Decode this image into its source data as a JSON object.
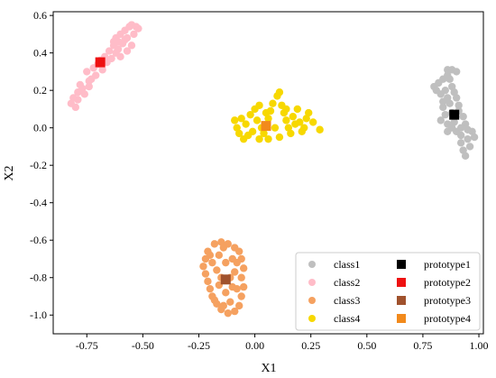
{
  "chart_data": {
    "type": "scatter",
    "xlabel": "X1",
    "ylabel": "X2",
    "xlim": [
      -0.9,
      1.02
    ],
    "ylim": [
      -1.1,
      0.62
    ],
    "xticks": [
      -0.75,
      -0.5,
      -0.25,
      0.0,
      0.25,
      0.5,
      0.75,
      1.0
    ],
    "xtick_labels": [
      "-0.75",
      "-0.50",
      "-0.25",
      "0.00",
      "0.25",
      "0.50",
      "0.75",
      "1.00"
    ],
    "yticks": [
      0.6,
      0.4,
      0.2,
      0.0,
      -0.2,
      -0.4,
      -0.6,
      -0.8,
      -1.0
    ],
    "ytick_labels": [
      "0.6",
      "0.4",
      "0.2",
      "0.0",
      "-0.2",
      "-0.4",
      "-0.6",
      "-0.8",
      "-1.0"
    ],
    "grid": false,
    "legend_position": "lower-right",
    "series": [
      {
        "name": "class1",
        "color": "#bfbfbf",
        "marker": "circle",
        "points": [
          [
            0.8,
            0.22
          ],
          [
            0.82,
            0.24
          ],
          [
            0.84,
            0.26
          ],
          [
            0.86,
            0.28
          ],
          [
            0.86,
            0.31
          ],
          [
            0.88,
            0.31
          ],
          [
            0.9,
            0.3
          ],
          [
            0.85,
            0.2
          ],
          [
            0.83,
            0.18
          ],
          [
            0.86,
            0.16
          ],
          [
            0.88,
            0.22
          ],
          [
            0.89,
            0.19
          ],
          [
            0.87,
            0.13
          ],
          [
            0.84,
            0.11
          ],
          [
            0.85,
            0.07
          ],
          [
            0.83,
            0.04
          ],
          [
            0.86,
            0.02
          ],
          [
            0.88,
            0.0
          ],
          [
            0.9,
            -0.02
          ],
          [
            0.92,
            -0.04
          ],
          [
            0.94,
            0.02
          ],
          [
            0.93,
            0.06
          ],
          [
            0.91,
            0.09
          ],
          [
            0.95,
            -0.06
          ],
          [
            0.97,
            -0.02
          ],
          [
            0.96,
            -0.1
          ],
          [
            0.93,
            -0.12
          ],
          [
            0.94,
            -0.15
          ],
          [
            0.98,
            -0.05
          ],
          [
            0.91,
            0.12
          ],
          [
            0.88,
            0.08
          ],
          [
            0.86,
            -0.02
          ],
          [
            0.89,
            0.03
          ],
          [
            0.92,
            0.0
          ],
          [
            0.84,
            0.14
          ],
          [
            0.81,
            0.2
          ],
          [
            0.87,
            0.26
          ],
          [
            0.9,
            0.16
          ],
          [
            0.95,
            -0.01
          ],
          [
            0.92,
            -0.08
          ]
        ]
      },
      {
        "name": "class2",
        "color": "#ffbcc8",
        "marker": "circle",
        "points": [
          [
            -0.82,
            0.13
          ],
          [
            -0.81,
            0.16
          ],
          [
            -0.79,
            0.19
          ],
          [
            -0.77,
            0.21
          ],
          [
            -0.79,
            0.15
          ],
          [
            -0.76,
            0.18
          ],
          [
            -0.74,
            0.22
          ],
          [
            -0.73,
            0.26
          ],
          [
            -0.75,
            0.3
          ],
          [
            -0.72,
            0.32
          ],
          [
            -0.7,
            0.34
          ],
          [
            -0.68,
            0.31
          ],
          [
            -0.66,
            0.35
          ],
          [
            -0.64,
            0.37
          ],
          [
            -0.65,
            0.41
          ],
          [
            -0.63,
            0.44
          ],
          [
            -0.62,
            0.48
          ],
          [
            -0.61,
            0.46
          ],
          [
            -0.6,
            0.5
          ],
          [
            -0.58,
            0.52
          ],
          [
            -0.56,
            0.54
          ],
          [
            -0.55,
            0.55
          ],
          [
            -0.53,
            0.54
          ],
          [
            -0.52,
            0.53
          ],
          [
            -0.57,
            0.48
          ],
          [
            -0.59,
            0.45
          ],
          [
            -0.55,
            0.44
          ],
          [
            -0.57,
            0.41
          ],
          [
            -0.6,
            0.38
          ],
          [
            -0.62,
            0.4
          ],
          [
            -0.8,
            0.11
          ],
          [
            -0.78,
            0.23
          ],
          [
            -0.71,
            0.28
          ],
          [
            -0.67,
            0.38
          ],
          [
            -0.61,
            0.42
          ],
          [
            -0.54,
            0.5
          ],
          [
            -0.58,
            0.47
          ],
          [
            -0.63,
            0.46
          ],
          [
            -0.69,
            0.36
          ],
          [
            -0.74,
            0.25
          ]
        ]
      },
      {
        "name": "class3",
        "color": "#f5a160",
        "marker": "circle",
        "points": [
          [
            -0.18,
            -0.62
          ],
          [
            -0.15,
            -0.61
          ],
          [
            -0.12,
            -0.62
          ],
          [
            -0.09,
            -0.64
          ],
          [
            -0.21,
            -0.66
          ],
          [
            -0.22,
            -0.7
          ],
          [
            -0.23,
            -0.74
          ],
          [
            -0.22,
            -0.78
          ],
          [
            -0.21,
            -0.82
          ],
          [
            -0.2,
            -0.86
          ],
          [
            -0.19,
            -0.9
          ],
          [
            -0.17,
            -0.94
          ],
          [
            -0.15,
            -0.97
          ],
          [
            -0.12,
            -0.99
          ],
          [
            -0.09,
            -0.98
          ],
          [
            -0.07,
            -0.95
          ],
          [
            -0.06,
            -0.9
          ],
          [
            -0.05,
            -0.85
          ],
          [
            -0.06,
            -0.8
          ],
          [
            -0.05,
            -0.75
          ],
          [
            -0.06,
            -0.7
          ],
          [
            -0.07,
            -0.66
          ],
          [
            -0.16,
            -0.68
          ],
          [
            -0.1,
            -0.7
          ],
          [
            -0.17,
            -0.76
          ],
          [
            -0.09,
            -0.77
          ],
          [
            -0.16,
            -0.84
          ],
          [
            -0.1,
            -0.85
          ],
          [
            -0.13,
            -0.88
          ],
          [
            -0.13,
            -0.72
          ],
          [
            -0.19,
            -0.72
          ],
          [
            -0.08,
            -0.86
          ],
          [
            -0.18,
            -0.92
          ],
          [
            -0.11,
            -0.93
          ],
          [
            -0.14,
            -0.64
          ],
          [
            -0.2,
            -0.68
          ],
          [
            -0.15,
            -0.8
          ],
          [
            -0.11,
            -0.8
          ],
          [
            -0.08,
            -0.72
          ],
          [
            -0.14,
            -0.95
          ]
        ]
      },
      {
        "name": "class4",
        "color": "#f7d800",
        "marker": "circle",
        "points": [
          [
            -0.09,
            0.04
          ],
          [
            -0.08,
            0.0
          ],
          [
            -0.07,
            -0.03
          ],
          [
            -0.05,
            -0.06
          ],
          [
            -0.03,
            -0.04
          ],
          [
            -0.02,
            0.07
          ],
          [
            0.0,
            0.1
          ],
          [
            0.02,
            0.12
          ],
          [
            0.01,
            0.04
          ],
          [
            0.03,
            0.0
          ],
          [
            0.04,
            -0.03
          ],
          [
            0.06,
            0.05
          ],
          [
            0.07,
            0.09
          ],
          [
            0.08,
            0.13
          ],
          [
            0.1,
            0.17
          ],
          [
            0.11,
            0.19
          ],
          [
            0.12,
            0.12
          ],
          [
            0.13,
            0.08
          ],
          [
            0.14,
            0.04
          ],
          [
            0.15,
            0.0
          ],
          [
            0.16,
            -0.03
          ],
          [
            0.17,
            0.06
          ],
          [
            0.19,
            0.1
          ],
          [
            0.2,
            0.03
          ],
          [
            0.21,
            -0.02
          ],
          [
            0.23,
            0.05
          ],
          [
            0.24,
            0.08
          ],
          [
            0.26,
            0.03
          ],
          [
            0.29,
            -0.01
          ],
          [
            0.09,
            0.0
          ],
          [
            0.11,
            -0.05
          ],
          [
            0.06,
            -0.06
          ],
          [
            -0.01,
            -0.02
          ],
          [
            -0.04,
            0.02
          ],
          [
            0.18,
            0.02
          ],
          [
            0.14,
            0.1
          ],
          [
            0.05,
            0.08
          ],
          [
            0.02,
            -0.06
          ],
          [
            0.22,
            0.0
          ],
          [
            -0.06,
            0.05
          ]
        ]
      }
    ],
    "prototypes": [
      {
        "name": "prototype1",
        "color": "#000000",
        "marker": "square",
        "x": 0.89,
        "y": 0.07
      },
      {
        "name": "prototype2",
        "color": "#ee1111",
        "marker": "square",
        "x": -0.69,
        "y": 0.35
      },
      {
        "name": "prototype3",
        "color": "#a0522d",
        "marker": "square",
        "x": -0.13,
        "y": -0.81
      },
      {
        "name": "prototype4",
        "color": "#f28a1c",
        "marker": "square",
        "x": 0.05,
        "y": 0.01
      }
    ]
  }
}
